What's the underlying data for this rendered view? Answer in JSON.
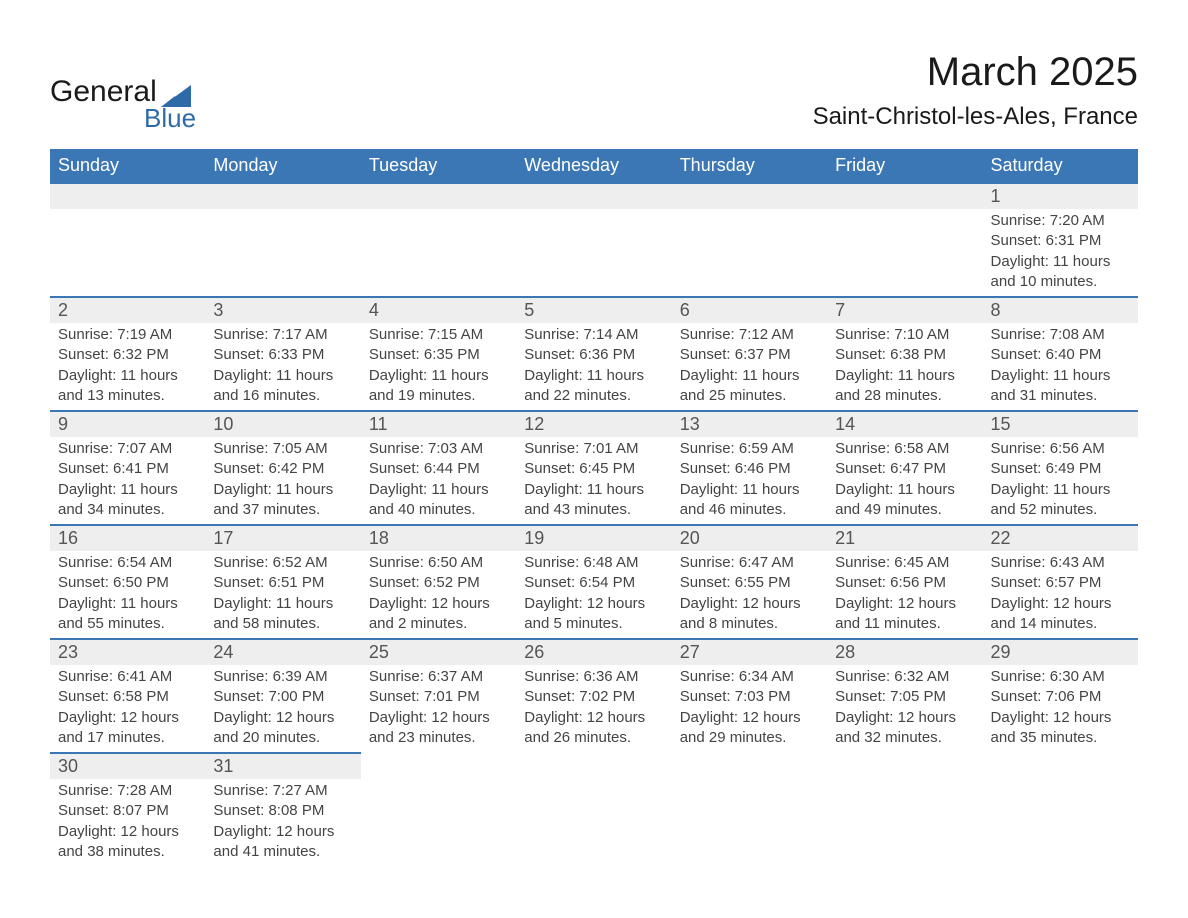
{
  "brand": {
    "word1": "General",
    "word2": "Blue",
    "text_color": "#1a1a1a",
    "accent_color": "#2f6aa8"
  },
  "title": "March 2025",
  "location": "Saint-Christol-les-Ales, France",
  "theme": {
    "header_bg": "#3b77b5",
    "header_text": "#ffffff",
    "daynum_bg": "#eeeeee",
    "row_border": "#3b77b5",
    "body_text": "#444444",
    "title_fontsize": 40,
    "location_fontsize": 24,
    "header_fontsize": 18,
    "daynum_fontsize": 18,
    "detail_fontsize": 15
  },
  "weekdays": [
    "Sunday",
    "Monday",
    "Tuesday",
    "Wednesday",
    "Thursday",
    "Friday",
    "Saturday"
  ],
  "weeks": [
    [
      null,
      null,
      null,
      null,
      null,
      null,
      {
        "n": "1",
        "sunrise": "Sunrise: 7:20 AM",
        "sunset": "Sunset: 6:31 PM",
        "day1": "Daylight: 11 hours",
        "day2": "and 10 minutes."
      }
    ],
    [
      {
        "n": "2",
        "sunrise": "Sunrise: 7:19 AM",
        "sunset": "Sunset: 6:32 PM",
        "day1": "Daylight: 11 hours",
        "day2": "and 13 minutes."
      },
      {
        "n": "3",
        "sunrise": "Sunrise: 7:17 AM",
        "sunset": "Sunset: 6:33 PM",
        "day1": "Daylight: 11 hours",
        "day2": "and 16 minutes."
      },
      {
        "n": "4",
        "sunrise": "Sunrise: 7:15 AM",
        "sunset": "Sunset: 6:35 PM",
        "day1": "Daylight: 11 hours",
        "day2": "and 19 minutes."
      },
      {
        "n": "5",
        "sunrise": "Sunrise: 7:14 AM",
        "sunset": "Sunset: 6:36 PM",
        "day1": "Daylight: 11 hours",
        "day2": "and 22 minutes."
      },
      {
        "n": "6",
        "sunrise": "Sunrise: 7:12 AM",
        "sunset": "Sunset: 6:37 PM",
        "day1": "Daylight: 11 hours",
        "day2": "and 25 minutes."
      },
      {
        "n": "7",
        "sunrise": "Sunrise: 7:10 AM",
        "sunset": "Sunset: 6:38 PM",
        "day1": "Daylight: 11 hours",
        "day2": "and 28 minutes."
      },
      {
        "n": "8",
        "sunrise": "Sunrise: 7:08 AM",
        "sunset": "Sunset: 6:40 PM",
        "day1": "Daylight: 11 hours",
        "day2": "and 31 minutes."
      }
    ],
    [
      {
        "n": "9",
        "sunrise": "Sunrise: 7:07 AM",
        "sunset": "Sunset: 6:41 PM",
        "day1": "Daylight: 11 hours",
        "day2": "and 34 minutes."
      },
      {
        "n": "10",
        "sunrise": "Sunrise: 7:05 AM",
        "sunset": "Sunset: 6:42 PM",
        "day1": "Daylight: 11 hours",
        "day2": "and 37 minutes."
      },
      {
        "n": "11",
        "sunrise": "Sunrise: 7:03 AM",
        "sunset": "Sunset: 6:44 PM",
        "day1": "Daylight: 11 hours",
        "day2": "and 40 minutes."
      },
      {
        "n": "12",
        "sunrise": "Sunrise: 7:01 AM",
        "sunset": "Sunset: 6:45 PM",
        "day1": "Daylight: 11 hours",
        "day2": "and 43 minutes."
      },
      {
        "n": "13",
        "sunrise": "Sunrise: 6:59 AM",
        "sunset": "Sunset: 6:46 PM",
        "day1": "Daylight: 11 hours",
        "day2": "and 46 minutes."
      },
      {
        "n": "14",
        "sunrise": "Sunrise: 6:58 AM",
        "sunset": "Sunset: 6:47 PM",
        "day1": "Daylight: 11 hours",
        "day2": "and 49 minutes."
      },
      {
        "n": "15",
        "sunrise": "Sunrise: 6:56 AM",
        "sunset": "Sunset: 6:49 PM",
        "day1": "Daylight: 11 hours",
        "day2": "and 52 minutes."
      }
    ],
    [
      {
        "n": "16",
        "sunrise": "Sunrise: 6:54 AM",
        "sunset": "Sunset: 6:50 PM",
        "day1": "Daylight: 11 hours",
        "day2": "and 55 minutes."
      },
      {
        "n": "17",
        "sunrise": "Sunrise: 6:52 AM",
        "sunset": "Sunset: 6:51 PM",
        "day1": "Daylight: 11 hours",
        "day2": "and 58 minutes."
      },
      {
        "n": "18",
        "sunrise": "Sunrise: 6:50 AM",
        "sunset": "Sunset: 6:52 PM",
        "day1": "Daylight: 12 hours",
        "day2": "and 2 minutes."
      },
      {
        "n": "19",
        "sunrise": "Sunrise: 6:48 AM",
        "sunset": "Sunset: 6:54 PM",
        "day1": "Daylight: 12 hours",
        "day2": "and 5 minutes."
      },
      {
        "n": "20",
        "sunrise": "Sunrise: 6:47 AM",
        "sunset": "Sunset: 6:55 PM",
        "day1": "Daylight: 12 hours",
        "day2": "and 8 minutes."
      },
      {
        "n": "21",
        "sunrise": "Sunrise: 6:45 AM",
        "sunset": "Sunset: 6:56 PM",
        "day1": "Daylight: 12 hours",
        "day2": "and 11 minutes."
      },
      {
        "n": "22",
        "sunrise": "Sunrise: 6:43 AM",
        "sunset": "Sunset: 6:57 PM",
        "day1": "Daylight: 12 hours",
        "day2": "and 14 minutes."
      }
    ],
    [
      {
        "n": "23",
        "sunrise": "Sunrise: 6:41 AM",
        "sunset": "Sunset: 6:58 PM",
        "day1": "Daylight: 12 hours",
        "day2": "and 17 minutes."
      },
      {
        "n": "24",
        "sunrise": "Sunrise: 6:39 AM",
        "sunset": "Sunset: 7:00 PM",
        "day1": "Daylight: 12 hours",
        "day2": "and 20 minutes."
      },
      {
        "n": "25",
        "sunrise": "Sunrise: 6:37 AM",
        "sunset": "Sunset: 7:01 PM",
        "day1": "Daylight: 12 hours",
        "day2": "and 23 minutes."
      },
      {
        "n": "26",
        "sunrise": "Sunrise: 6:36 AM",
        "sunset": "Sunset: 7:02 PM",
        "day1": "Daylight: 12 hours",
        "day2": "and 26 minutes."
      },
      {
        "n": "27",
        "sunrise": "Sunrise: 6:34 AM",
        "sunset": "Sunset: 7:03 PM",
        "day1": "Daylight: 12 hours",
        "day2": "and 29 minutes."
      },
      {
        "n": "28",
        "sunrise": "Sunrise: 6:32 AM",
        "sunset": "Sunset: 7:05 PM",
        "day1": "Daylight: 12 hours",
        "day2": "and 32 minutes."
      },
      {
        "n": "29",
        "sunrise": "Sunrise: 6:30 AM",
        "sunset": "Sunset: 7:06 PM",
        "day1": "Daylight: 12 hours",
        "day2": "and 35 minutes."
      }
    ],
    [
      {
        "n": "30",
        "sunrise": "Sunrise: 7:28 AM",
        "sunset": "Sunset: 8:07 PM",
        "day1": "Daylight: 12 hours",
        "day2": "and 38 minutes."
      },
      {
        "n": "31",
        "sunrise": "Sunrise: 7:27 AM",
        "sunset": "Sunset: 8:08 PM",
        "day1": "Daylight: 12 hours",
        "day2": "and 41 minutes."
      },
      null,
      null,
      null,
      null,
      null
    ]
  ]
}
